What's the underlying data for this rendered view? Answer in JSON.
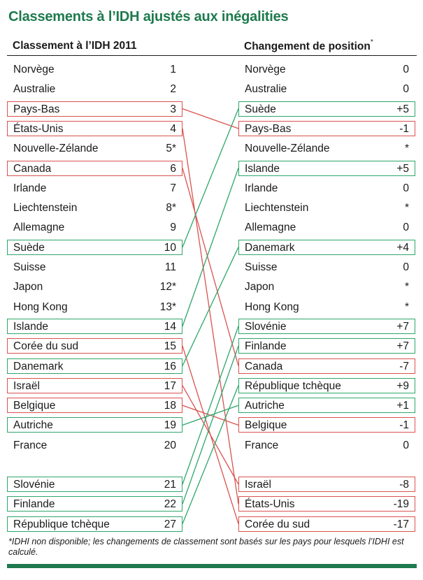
{
  "title": "Classements à l’IDH ajustés aux inégalities",
  "left_header": "Classement à l’IDH 2011",
  "right_header": "Changement de position",
  "right_header_mark": "*",
  "footnote": "*IDHI non disponible; les changements de classement sont basés sur les pays pour lesquels l’IDHI est calculé.",
  "colors": {
    "title": "#1e7a4e",
    "down": "#d9534f",
    "up": "#2ea66a",
    "rule": "#1e7a4e"
  },
  "left": [
    {
      "country": "Norvège",
      "rank": "1",
      "mark": "none"
    },
    {
      "country": "Australie",
      "rank": "2",
      "mark": "none"
    },
    {
      "country": "Pays-Bas",
      "rank": "3",
      "mark": "down"
    },
    {
      "country": "États-Unis",
      "rank": "4",
      "mark": "down"
    },
    {
      "country": "Nouvelle-Zélande",
      "rank": "5*",
      "mark": "none"
    },
    {
      "country": "Canada",
      "rank": "6",
      "mark": "down"
    },
    {
      "country": "Irlande",
      "rank": "7",
      "mark": "none"
    },
    {
      "country": "Liechtenstein",
      "rank": "8*",
      "mark": "none"
    },
    {
      "country": "Allemagne",
      "rank": "9",
      "mark": "none"
    },
    {
      "country": "Suède",
      "rank": "10",
      "mark": "up"
    },
    {
      "country": "Suisse",
      "rank": "11",
      "mark": "none"
    },
    {
      "country": "Japon",
      "rank": "12*",
      "mark": "none"
    },
    {
      "country": "Hong Kong",
      "rank": "13*",
      "mark": "none"
    },
    {
      "country": "Islande",
      "rank": "14",
      "mark": "up"
    },
    {
      "country": "Corée du sud",
      "rank": "15",
      "mark": "down"
    },
    {
      "country": "Danemark",
      "rank": "16",
      "mark": "up"
    },
    {
      "country": "Israël",
      "rank": "17",
      "mark": "down"
    },
    {
      "country": "Belgique",
      "rank": "18",
      "mark": "down"
    },
    {
      "country": "Autriche",
      "rank": "19",
      "mark": "up"
    },
    {
      "country": "France",
      "rank": "20",
      "mark": "none"
    },
    {
      "country": "Slovénie",
      "rank": "21",
      "mark": "up"
    },
    {
      "country": "Finlande",
      "rank": "22",
      "mark": "up"
    },
    {
      "country": "République tchèque",
      "rank": "27",
      "mark": "up"
    }
  ],
  "right": [
    {
      "country": "Norvège",
      "change": "0",
      "mark": "none"
    },
    {
      "country": "Australie",
      "change": "0",
      "mark": "none"
    },
    {
      "country": "Suède",
      "change": "+5",
      "mark": "up"
    },
    {
      "country": "Pays-Bas",
      "change": "-1",
      "mark": "down"
    },
    {
      "country": "Nouvelle-Zélande",
      "change": "*",
      "mark": "none"
    },
    {
      "country": "Islande",
      "change": "+5",
      "mark": "up"
    },
    {
      "country": "Irlande",
      "change": "0",
      "mark": "none"
    },
    {
      "country": "Liechtenstein",
      "change": "*",
      "mark": "none"
    },
    {
      "country": "Allemagne",
      "change": "0",
      "mark": "none"
    },
    {
      "country": "Danemark",
      "change": "+4",
      "mark": "up"
    },
    {
      "country": "Suisse",
      "change": "0",
      "mark": "none"
    },
    {
      "country": "Japon",
      "change": "*",
      "mark": "none"
    },
    {
      "country": "Hong Kong",
      "change": "*",
      "mark": "none"
    },
    {
      "country": "Slovénie",
      "change": "+7",
      "mark": "up"
    },
    {
      "country": "Finlande",
      "change": "+7",
      "mark": "up"
    },
    {
      "country": "Canada",
      "change": "-7",
      "mark": "down"
    },
    {
      "country": "République tchèque",
      "change": "+9",
      "mark": "up"
    },
    {
      "country": "Autriche",
      "change": "+1",
      "mark": "up"
    },
    {
      "country": "Belgique",
      "change": "-1",
      "mark": "down"
    },
    {
      "country": "France",
      "change": "0",
      "mark": "none"
    },
    {
      "country": "Israël",
      "change": "-8",
      "mark": "down"
    },
    {
      "country": "États-Unis",
      "change": "-19",
      "mark": "down"
    },
    {
      "country": "Corée du sud",
      "change": "-17",
      "mark": "down"
    }
  ],
  "links": [
    {
      "from": 2,
      "to": 3,
      "dir": "down"
    },
    {
      "from": 3,
      "to": 21,
      "dir": "down"
    },
    {
      "from": 5,
      "to": 15,
      "dir": "down"
    },
    {
      "from": 9,
      "to": 2,
      "dir": "up"
    },
    {
      "from": 13,
      "to": 5,
      "dir": "up"
    },
    {
      "from": 14,
      "to": 22,
      "dir": "down"
    },
    {
      "from": 15,
      "to": 9,
      "dir": "up"
    },
    {
      "from": 16,
      "to": 20,
      "dir": "down"
    },
    {
      "from": 17,
      "to": 18,
      "dir": "down"
    },
    {
      "from": 18,
      "to": 17,
      "dir": "up"
    },
    {
      "from": 20,
      "to": 13,
      "dir": "up"
    },
    {
      "from": 21,
      "to": 14,
      "dir": "up"
    },
    {
      "from": 22,
      "to": 16,
      "dir": "up"
    }
  ]
}
